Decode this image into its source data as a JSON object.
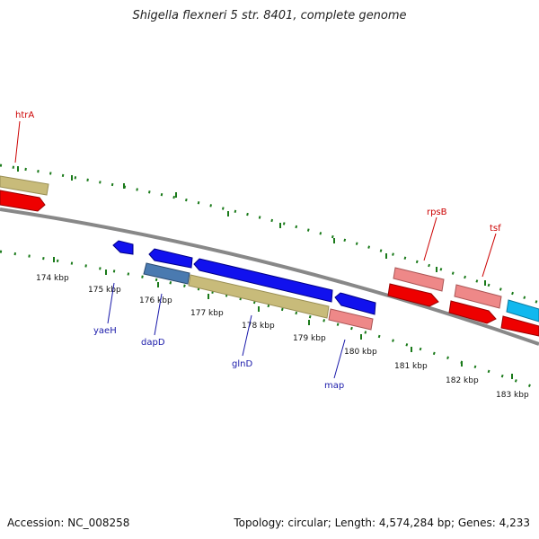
{
  "title": "Shigella flexneri 5 str. 8401, complete genome",
  "footer": {
    "accession": "Accession: NC_008258",
    "topology": "Topology: circular; Length: 4,574,284 bp; Genes: 4,233"
  },
  "kbp_labels": [
    "174 kbp",
    "175 kbp",
    "176 kbp",
    "177 kbp",
    "178 kbp",
    "179 kbp",
    "180 kbp",
    "181 kbp",
    "182 kbp",
    "183 kbp"
  ],
  "gene_labels": {
    "htrA": "htrA",
    "rpsB": "rpsB",
    "tsf": "tsf",
    "yaeH": "yaeH",
    "dapD": "dapD",
    "glnD": "glnD",
    "map": "map"
  },
  "colors": {
    "backbone": "#888888",
    "tick": "#1a7a1a",
    "forward_label": "#cc0000",
    "reverse_label": "#1a1aaa",
    "red_gene": "#ee0000",
    "pink_gene": "#ee8888",
    "blue_gene": "#1111ee",
    "khaki_gene": "#c8bb7a",
    "steel_gene": "#4a7ab0",
    "cyan_gene": "#11b8ee"
  }
}
